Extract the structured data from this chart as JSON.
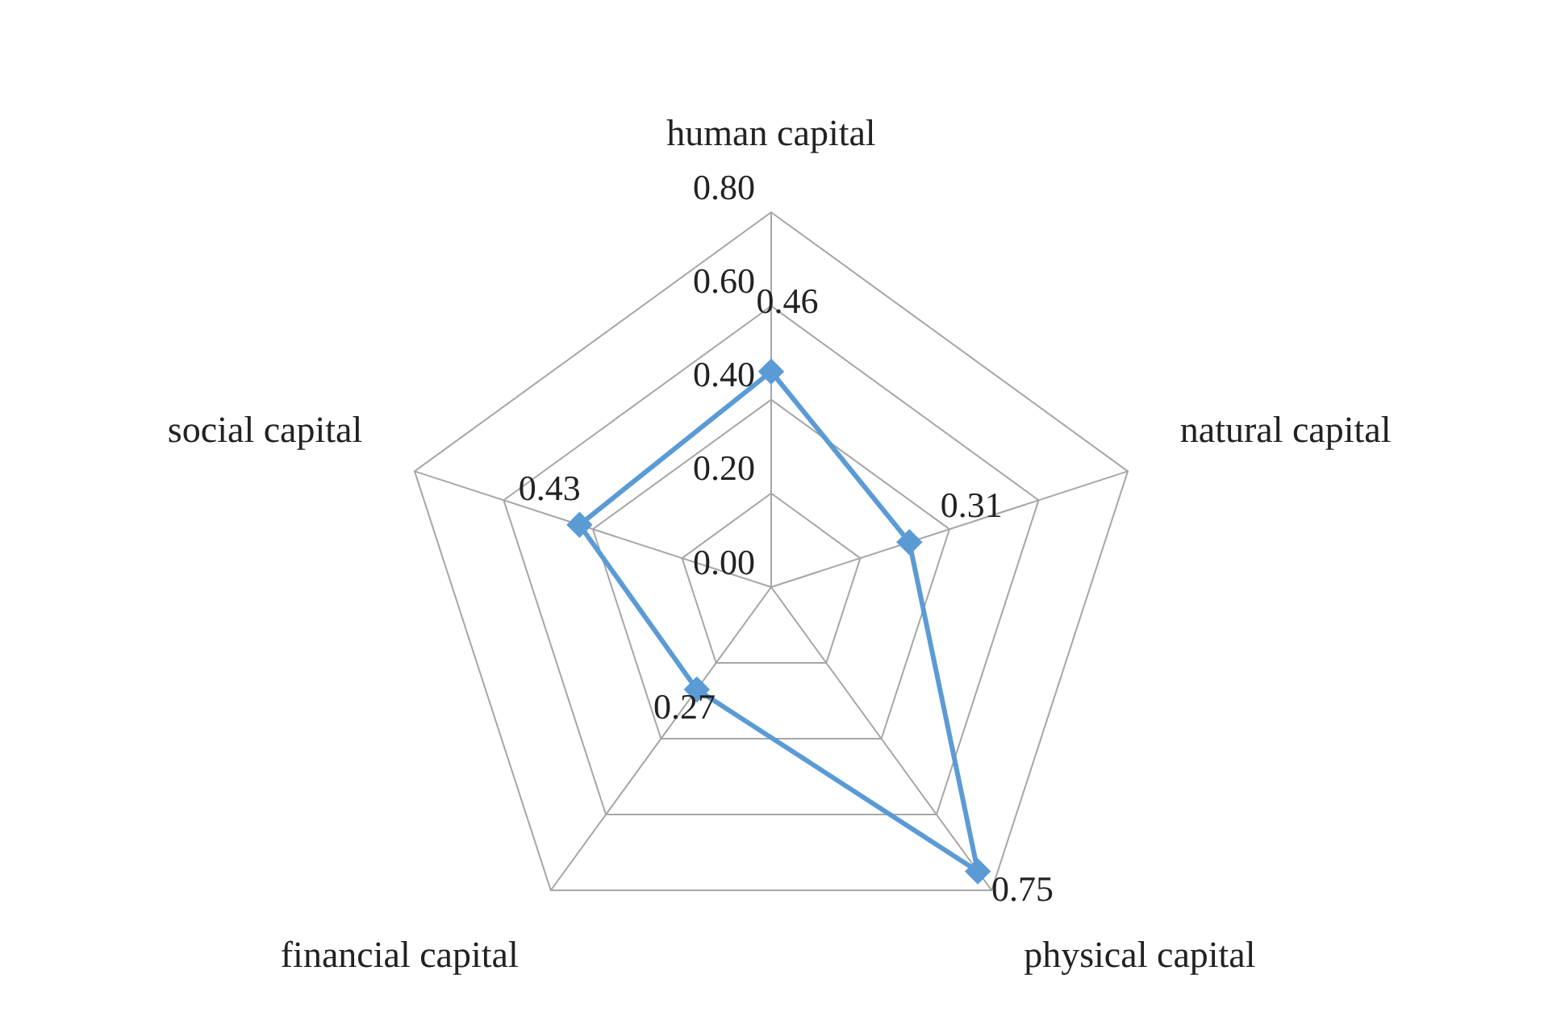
{
  "chart_data": {
    "type": "radar",
    "categories": [
      "human capital",
      "natural capital",
      "physical capital",
      "financial capital",
      "social capital"
    ],
    "series": [
      {
        "color": "#5b9bd5",
        "values": [
          0.46,
          0.31,
          0.75,
          0.27,
          0.43
        ]
      }
    ],
    "ylim": [
      0,
      0.8
    ],
    "yticks": [
      {
        "value": 0,
        "label": "0.00"
      },
      {
        "value": 0.2,
        "label": "0.20"
      },
      {
        "value": 0.4,
        "label": "0.40"
      },
      {
        "value": 0.6,
        "label": "0.60"
      },
      {
        "value": 0.8,
        "label": "0.80"
      }
    ],
    "grid": true,
    "legend": false,
    "marker": "diamond",
    "data_labels": true
  }
}
